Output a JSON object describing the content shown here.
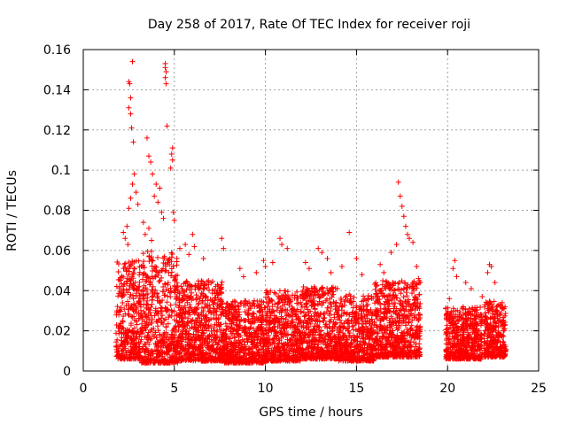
{
  "chart_data": {
    "type": "scatter",
    "title": "Day 258 of 2017, Rate Of TEC Index for receiver roji",
    "xlabel": "GPS time / hours",
    "ylabel": "ROTI / TECUs",
    "xlim": [
      0,
      25
    ],
    "ylim": [
      0,
      0.16
    ],
    "x_ticks": [
      0,
      5,
      10,
      15,
      20,
      25
    ],
    "x_tick_labels": [
      "0",
      "5",
      "10",
      "15",
      "20",
      "25"
    ],
    "y_ticks": [
      0,
      0.02,
      0.04,
      0.06,
      0.08,
      0.1,
      0.12,
      0.14,
      0.16
    ],
    "y_tick_labels": [
      "0",
      "0.02",
      "0.04",
      "0.06",
      "0.08",
      "0.1",
      "0.12",
      "0.14",
      "0.16"
    ],
    "grid": true,
    "marker": "plus",
    "color": "#ff0000",
    "series": [
      {
        "points": [
          [
            2.7,
            0.154
          ],
          [
            2.5,
            0.144
          ],
          [
            2.55,
            0.143
          ],
          [
            2.6,
            0.136
          ],
          [
            2.5,
            0.131
          ],
          [
            2.6,
            0.128
          ],
          [
            2.65,
            0.121
          ],
          [
            2.75,
            0.114
          ],
          [
            3.5,
            0.116
          ],
          [
            4.5,
            0.153
          ],
          [
            4.5,
            0.151
          ],
          [
            4.55,
            0.149
          ],
          [
            4.5,
            0.146
          ],
          [
            4.55,
            0.143
          ],
          [
            4.6,
            0.122
          ],
          [
            4.9,
            0.111
          ],
          [
            4.85,
            0.108
          ],
          [
            4.9,
            0.105
          ],
          [
            4.8,
            0.101
          ],
          [
            3.6,
            0.107
          ],
          [
            3.7,
            0.104
          ],
          [
            3.8,
            0.098
          ],
          [
            4.0,
            0.093
          ],
          [
            4.2,
            0.091
          ],
          [
            2.8,
            0.098
          ],
          [
            2.7,
            0.093
          ],
          [
            2.9,
            0.089
          ],
          [
            2.6,
            0.086
          ],
          [
            3.0,
            0.083
          ],
          [
            2.5,
            0.081
          ],
          [
            3.9,
            0.087
          ],
          [
            4.1,
            0.084
          ],
          [
            4.3,
            0.079
          ],
          [
            4.4,
            0.076
          ],
          [
            4.95,
            0.079
          ],
          [
            5.0,
            0.075
          ],
          [
            2.2,
            0.069
          ],
          [
            2.3,
            0.066
          ],
          [
            2.4,
            0.072
          ],
          [
            2.45,
            0.063
          ],
          [
            3.3,
            0.074
          ],
          [
            3.4,
            0.068
          ],
          [
            3.6,
            0.071
          ],
          [
            3.75,
            0.065
          ],
          [
            6.0,
            0.068
          ],
          [
            6.1,
            0.062
          ],
          [
            7.6,
            0.066
          ],
          [
            7.7,
            0.061
          ],
          [
            5.3,
            0.061
          ],
          [
            5.6,
            0.063
          ],
          [
            5.8,
            0.058
          ],
          [
            6.6,
            0.056
          ],
          [
            10.8,
            0.066
          ],
          [
            10.9,
            0.063
          ],
          [
            11.2,
            0.061
          ],
          [
            12.9,
            0.061
          ],
          [
            13.1,
            0.059
          ],
          [
            14.6,
            0.069
          ],
          [
            15.0,
            0.056
          ],
          [
            17.3,
            0.094
          ],
          [
            17.4,
            0.087
          ],
          [
            17.5,
            0.082
          ],
          [
            17.6,
            0.077
          ],
          [
            17.7,
            0.072
          ],
          [
            17.8,
            0.068
          ],
          [
            17.9,
            0.066
          ],
          [
            18.1,
            0.064
          ],
          [
            17.2,
            0.063
          ],
          [
            16.9,
            0.059
          ],
          [
            20.4,
            0.055
          ],
          [
            20.3,
            0.051
          ],
          [
            20.5,
            0.047
          ],
          [
            22.3,
            0.053
          ],
          [
            22.4,
            0.052
          ],
          [
            22.2,
            0.049
          ],
          [
            9.9,
            0.055
          ],
          [
            10.0,
            0.052
          ],
          [
            10.4,
            0.054
          ],
          [
            9.5,
            0.049
          ],
          [
            8.6,
            0.051
          ],
          [
            8.8,
            0.047
          ],
          [
            12.2,
            0.054
          ],
          [
            12.4,
            0.051
          ],
          [
            13.4,
            0.056
          ],
          [
            13.6,
            0.049
          ],
          [
            14.2,
            0.052
          ],
          [
            15.3,
            0.048
          ],
          [
            16.3,
            0.053
          ],
          [
            16.5,
            0.049
          ],
          [
            18.3,
            0.052
          ],
          [
            18.4,
            0.046
          ],
          [
            21.0,
            0.044
          ],
          [
            21.3,
            0.041
          ],
          [
            22.6,
            0.044
          ],
          [
            23.0,
            0.034
          ],
          [
            19.9,
            0.031
          ],
          [
            20.1,
            0.036
          ],
          [
            23.1,
            0.031
          ],
          [
            21.9,
            0.037
          ]
        ],
        "dense_bands": [
          {
            "x_range": [
              1.8,
              3.2
            ],
            "y_range": [
              0.006,
              0.055
            ]
          },
          {
            "x_range": [
              3.2,
              5.2
            ],
            "y_range": [
              0.004,
              0.06
            ]
          },
          {
            "x_range": [
              5.2,
              7.7
            ],
            "y_range": [
              0.005,
              0.045
            ]
          },
          {
            "x_range": [
              7.7,
              10.0
            ],
            "y_range": [
              0.004,
              0.035
            ]
          },
          {
            "x_range": [
              10.0,
              12.0
            ],
            "y_range": [
              0.005,
              0.04
            ]
          },
          {
            "x_range": [
              12.0,
              14.0
            ],
            "y_range": [
              0.006,
              0.042
            ]
          },
          {
            "x_range": [
              14.0,
              16.0
            ],
            "y_range": [
              0.005,
              0.038
            ]
          },
          {
            "x_range": [
              16.0,
              18.5
            ],
            "y_range": [
              0.007,
              0.045
            ]
          },
          {
            "x_range": [
              19.9,
              21.9
            ],
            "y_range": [
              0.006,
              0.032
            ]
          },
          {
            "x_range": [
              22.0,
              23.2
            ],
            "y_range": [
              0.007,
              0.035
            ]
          }
        ]
      }
    ]
  }
}
